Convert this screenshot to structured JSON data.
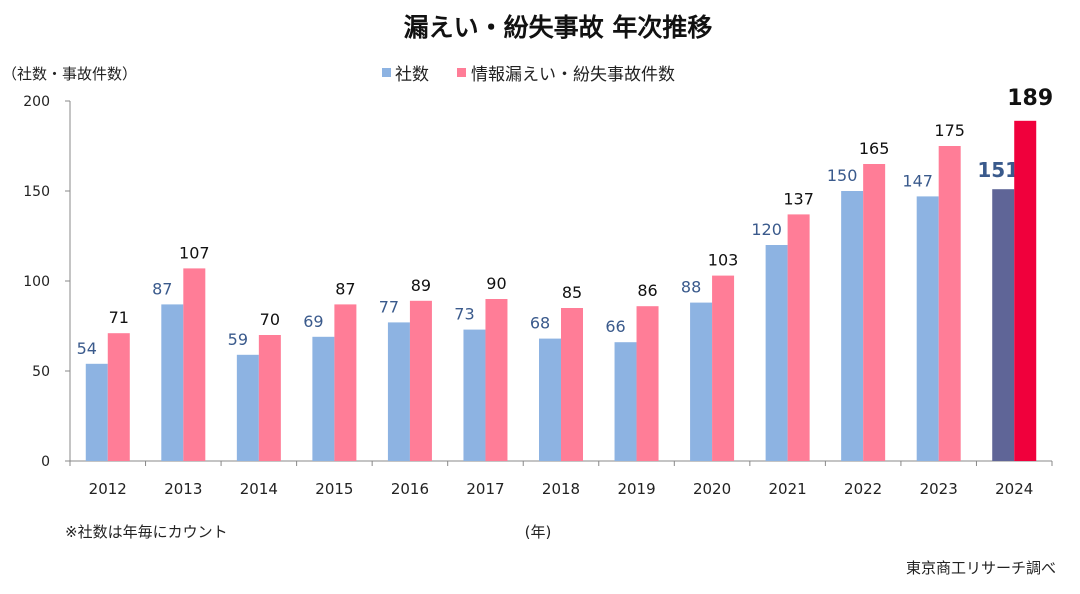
{
  "chart_data": {
    "type": "bar",
    "title": "漏えい・紛失事故  年次推移",
    "ylabel": "（社数・事故件数）",
    "xlabel": "(年)",
    "ylim": [
      0,
      200
    ],
    "yticks": [
      "0",
      "50",
      "100",
      "150",
      "200"
    ],
    "categories": [
      "2012",
      "2013",
      "2014",
      "2015",
      "2016",
      "2017",
      "2018",
      "2019",
      "2020",
      "2021",
      "2022",
      "2023",
      "2024"
    ],
    "series": [
      {
        "name": "社数",
        "values": [
          54,
          87,
          59,
          69,
          77,
          73,
          68,
          66,
          88,
          120,
          150,
          147,
          151
        ],
        "color": "#8DB3E2",
        "highlight_color": "#5F6597",
        "label_color": "#3A5A8C"
      },
      {
        "name": "情報漏えい・紛失事故件数",
        "values": [
          71,
          107,
          70,
          87,
          89,
          90,
          85,
          86,
          103,
          137,
          165,
          175,
          189
        ],
        "color": "#FF7D97",
        "highlight_color": "#F0003C",
        "label_color": "#111111"
      }
    ],
    "legend": "top-center",
    "grid": false,
    "note": "※社数は年毎にカウント",
    "source": "東京商工リサーチ調べ"
  }
}
